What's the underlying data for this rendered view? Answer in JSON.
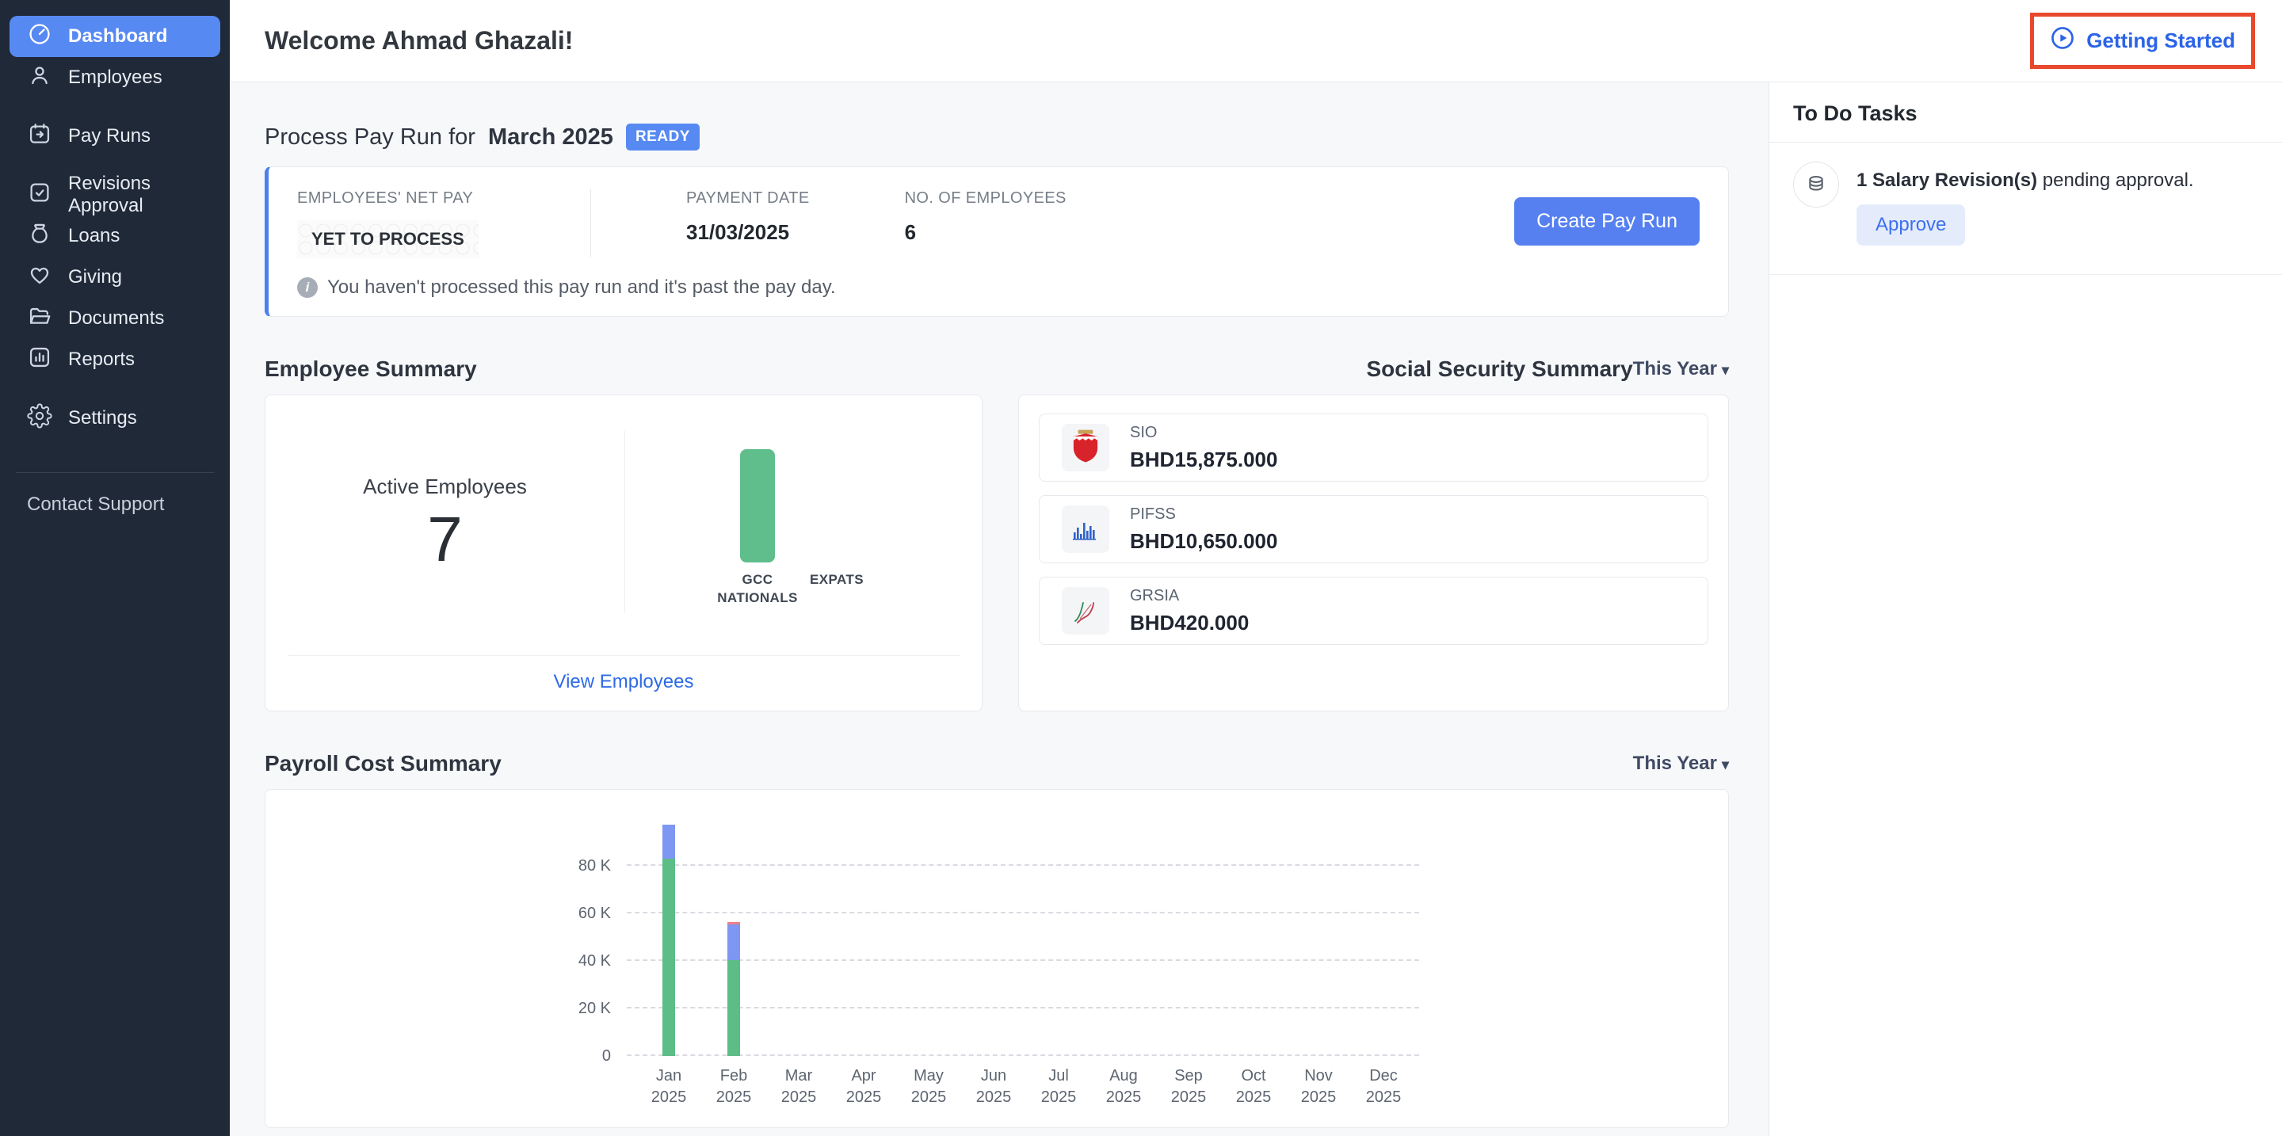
{
  "sidebar": {
    "items": [
      {
        "label": "Dashboard",
        "icon": "gauge",
        "active": true
      },
      {
        "label": "Employees",
        "icon": "user"
      },
      {
        "label": "Pay Runs",
        "icon": "calendar-arrow"
      },
      {
        "label": "Revisions Approval",
        "icon": "check-square"
      },
      {
        "label": "Loans",
        "icon": "money-bag"
      },
      {
        "label": "Giving",
        "icon": "heart"
      },
      {
        "label": "Documents",
        "icon": "folder"
      },
      {
        "label": "Reports",
        "icon": "bar-chart"
      },
      {
        "label": "Settings",
        "icon": "gear"
      }
    ],
    "footer_link": "Contact Support"
  },
  "header": {
    "welcome": "Welcome Ahmad Ghazali!",
    "getting_started_label": "Getting Started"
  },
  "payrun": {
    "title_prefix": "Process Pay Run for",
    "title_period": "March 2025",
    "status_badge": "READY",
    "net_pay_label": "EMPLOYEES' NET PAY",
    "net_pay_value": "YET TO PROCESS",
    "payment_date_label": "PAYMENT DATE",
    "payment_date_value": "31/03/2025",
    "employees_label": "NO. OF EMPLOYEES",
    "employees_value": "6",
    "cta_label": "Create Pay Run",
    "info_text": "You haven't processed this pay run and it's past the pay day."
  },
  "employee_summary": {
    "title": "Employee Summary",
    "active_label": "Active Employees",
    "active_count": "7",
    "view_link": "View Employees",
    "chart_data": {
      "type": "bar",
      "categories": [
        "GCC NATIONALS",
        "EXPATS"
      ],
      "values": [
        7,
        0
      ],
      "bar_color": "#5fbe8b",
      "max": 7
    }
  },
  "social_security": {
    "title": "Social Security Summary",
    "period_filter": "This Year",
    "rows": [
      {
        "name": "SIO",
        "amount": "BHD15,875.000"
      },
      {
        "name": "PIFSS",
        "amount": "BHD10,650.000"
      },
      {
        "name": "GRSIA",
        "amount": "BHD420.000"
      }
    ]
  },
  "payroll_cost": {
    "title": "Payroll Cost Summary",
    "period_filter": "This Year",
    "chart_data": {
      "type": "stacked-bar",
      "year": "2025",
      "categories": [
        "Jan",
        "Feb",
        "Mar",
        "Apr",
        "May",
        "Jun",
        "Jul",
        "Aug",
        "Sep",
        "Oct",
        "Nov",
        "Dec"
      ],
      "yticks": [
        {
          "label": "0",
          "value": 0
        },
        {
          "label": "20 K",
          "value": 20000
        },
        {
          "label": "40 K",
          "value": 40000
        },
        {
          "label": "60 K",
          "value": 60000
        },
        {
          "label": "80 K",
          "value": 80000
        }
      ],
      "ymax": 100000,
      "grid": "dashed",
      "series": [
        {
          "name": "green-segment",
          "color": "#5cbd87",
          "values": [
            83000,
            40500,
            0,
            0,
            0,
            0,
            0,
            0,
            0,
            0,
            0,
            0
          ]
        },
        {
          "name": "blue-segment",
          "color": "#7d97f2",
          "values": [
            14200,
            15000,
            0,
            0,
            0,
            0,
            0,
            0,
            0,
            0,
            0,
            0
          ]
        },
        {
          "name": "red-segment",
          "color": "#ed7d8c",
          "values": [
            0,
            700,
            0,
            0,
            0,
            0,
            0,
            0,
            0,
            0,
            0,
            0
          ]
        }
      ]
    }
  },
  "todo": {
    "title": "To Do Tasks",
    "task_bold": "1 Salary Revision(s)",
    "task_rest": " pending approval.",
    "approve_label": "Approve"
  },
  "colors": {
    "sidebar_bg": "#202938",
    "accent_blue": "#5689f2",
    "button_blue": "#5680f0",
    "link_blue": "#2e6be6",
    "annotation_red": "#e8492c",
    "bar_green": "#5fbe8b",
    "bar_blue": "#7d97f2",
    "bar_red": "#ed7d8c",
    "main_bg": "#f7f8fa"
  }
}
